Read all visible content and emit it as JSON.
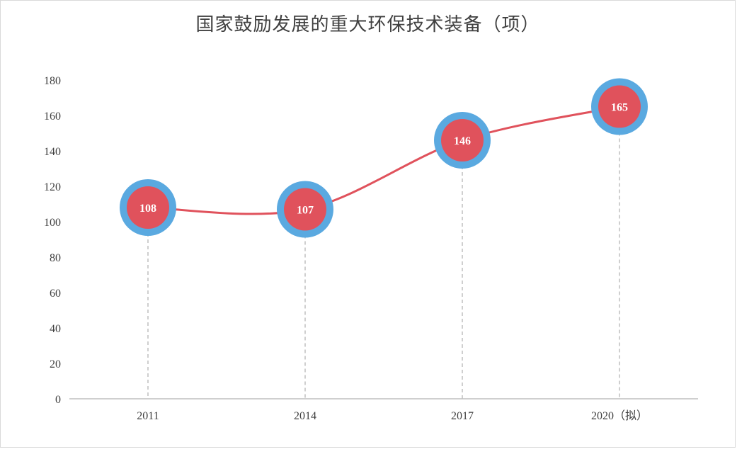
{
  "chart_data": {
    "type": "line",
    "title": "国家鼓励发展的重大环保技术装备（项）",
    "categories": [
      "2011",
      "2014",
      "2017",
      "2020（拟）"
    ],
    "series": [
      {
        "values": [
          108,
          107,
          146,
          165
        ]
      }
    ],
    "data_labels": [
      "108",
      "107",
      "146",
      "165"
    ],
    "y_ticks": [
      "0",
      "20",
      "40",
      "60",
      "80",
      "100",
      "120",
      "140",
      "160",
      "180"
    ],
    "ylim": [
      0,
      180
    ],
    "xlabel": "",
    "ylabel": "",
    "grid": false,
    "legend": "none",
    "colors": {
      "line": "#e0525c",
      "marker_fill": "#e0525c",
      "marker_ring": "#5aa9e0",
      "drop_line": "#bfbfbf",
      "axis": "#bfbfbf"
    }
  }
}
